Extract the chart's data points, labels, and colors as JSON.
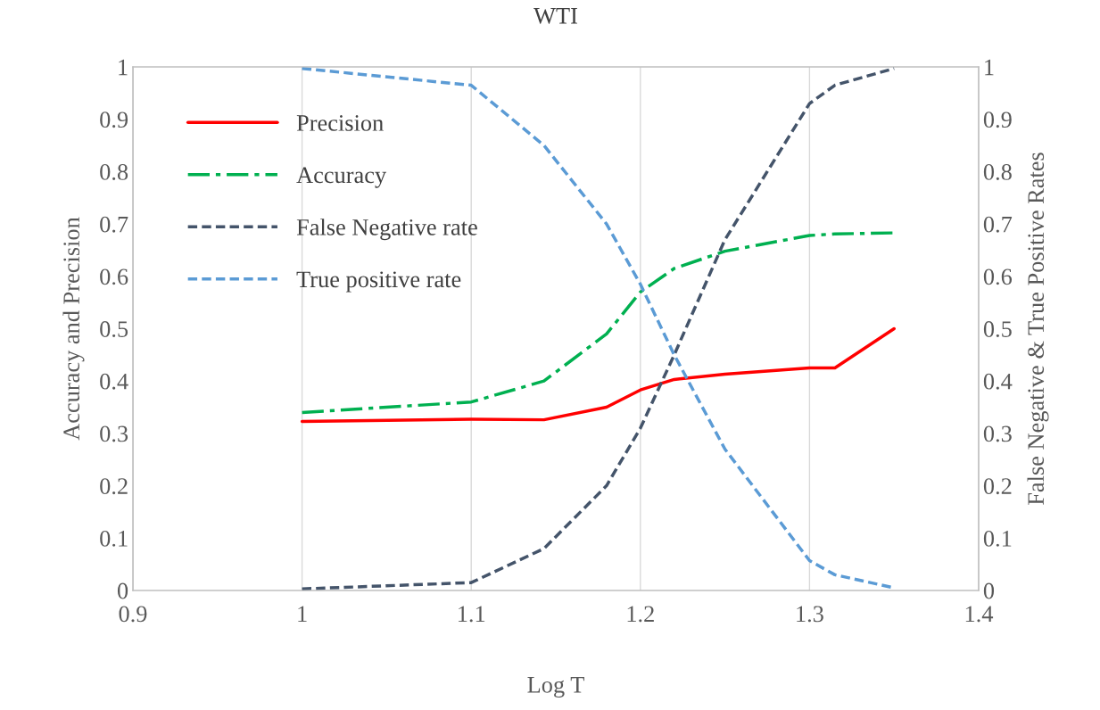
{
  "chart_data": {
    "type": "line",
    "title": "WTI",
    "xlabel": "Log T",
    "ylabel": "Accuracy and Precision",
    "y2label": "False Negative & True Positive Rates",
    "x": [
      1.0,
      1.1,
      1.143,
      1.18,
      1.2,
      1.22,
      1.25,
      1.3,
      1.315,
      1.35
    ],
    "series": [
      {
        "name": "Precision",
        "color": "#ff0000",
        "line_style": "solid",
        "values": [
          0.323,
          0.327,
          0.326,
          0.35,
          0.383,
          0.403,
          0.413,
          0.425,
          0.425,
          0.5
        ]
      },
      {
        "name": "Accuracy",
        "color": "#00b050",
        "line_style": "dashdot",
        "values": [
          0.34,
          0.36,
          0.4,
          0.49,
          0.57,
          0.615,
          0.648,
          0.678,
          0.681,
          0.683
        ]
      },
      {
        "name": "False Negative rate",
        "color": "#44546a",
        "line_style": "dashed",
        "axis": "y2",
        "values": [
          0.003,
          0.015,
          0.08,
          0.2,
          0.31,
          0.45,
          0.67,
          0.93,
          0.965,
          0.997
        ]
      },
      {
        "name": "True positive rate",
        "color": "#5b9bd5",
        "line_style": "dashed",
        "axis": "y2",
        "values": [
          0.997,
          0.965,
          0.85,
          0.7,
          0.585,
          0.45,
          0.27,
          0.057,
          0.03,
          0.005
        ]
      }
    ],
    "xlim": [
      0.9,
      1.4
    ],
    "xticks": [
      0.9,
      1,
      1.1,
      1.2,
      1.3,
      1.4
    ],
    "ylim": [
      0,
      1
    ],
    "yticks": [
      0,
      0.1,
      0.2,
      0.3,
      0.4,
      0.5,
      0.6,
      0.7,
      0.8,
      0.9,
      1
    ],
    "y2lim": [
      0,
      1
    ],
    "y2ticks": [
      0,
      0.1,
      0.2,
      0.3,
      0.4,
      0.5,
      0.6,
      0.7,
      0.8,
      0.9,
      1
    ],
    "grid": "x",
    "legend": "top left",
    "marker": "none"
  }
}
